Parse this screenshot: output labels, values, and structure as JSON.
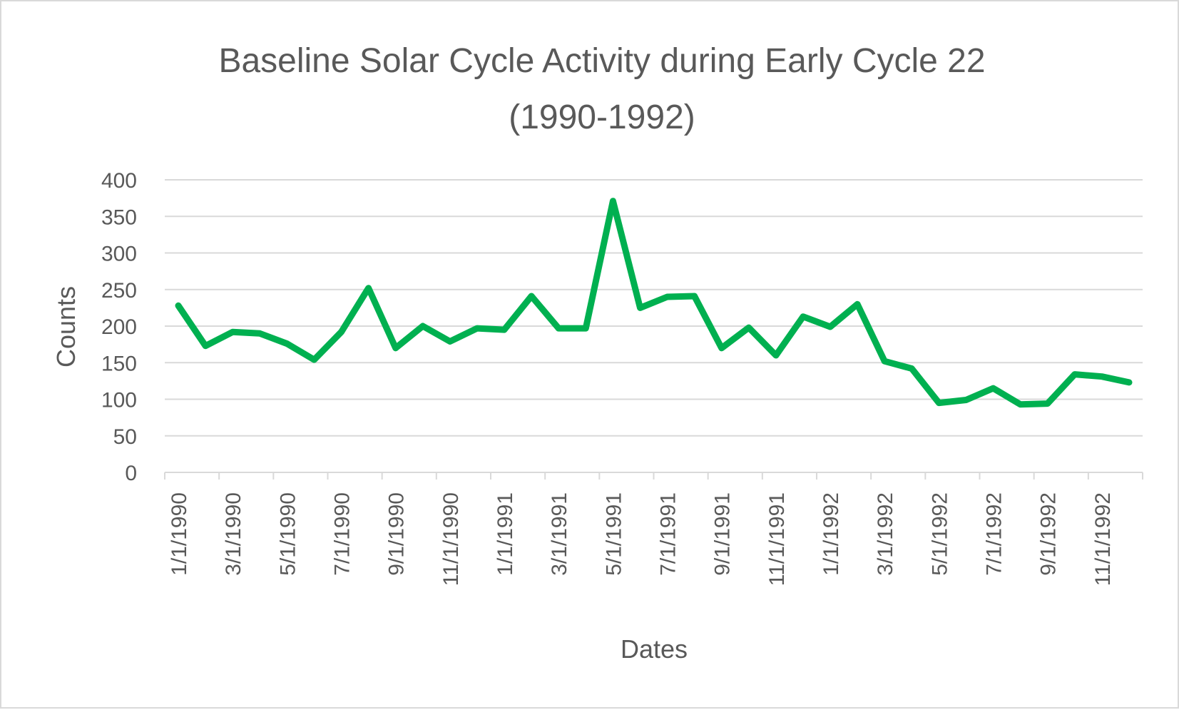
{
  "chart_data": {
    "type": "line",
    "title_lines": [
      "Baseline Solar Cycle Activity during Early Cycle 22",
      "(1990-1992)"
    ],
    "xlabel": "Dates",
    "ylabel": "Counts",
    "ylim": [
      0,
      400
    ],
    "y_ticks": [
      0,
      50,
      100,
      150,
      200,
      250,
      300,
      350,
      400
    ],
    "gridlines": true,
    "legend": "none",
    "line_color": "#00b050",
    "x_tick_labels": [
      "1/1/1990",
      "3/1/1990",
      "5/1/1990",
      "7/1/1990",
      "9/1/1990",
      "11/1/1990",
      "1/1/1991",
      "3/1/1991",
      "5/1/1991",
      "7/1/1991",
      "9/1/1991",
      "11/1/1991",
      "1/1/1992",
      "3/1/1992",
      "5/1/1992",
      "7/1/1992",
      "9/1/1992",
      "11/1/1992"
    ],
    "categories": [
      "1/1990",
      "2/1990",
      "3/1990",
      "4/1990",
      "5/1990",
      "6/1990",
      "7/1990",
      "8/1990",
      "9/1990",
      "10/1990",
      "11/1990",
      "12/1990",
      "1/1991",
      "2/1991",
      "3/1991",
      "4/1991",
      "5/1991",
      "6/1991",
      "7/1991",
      "8/1991",
      "9/1991",
      "10/1991",
      "11/1991",
      "12/1991",
      "1/1992",
      "2/1992",
      "3/1992",
      "4/1992",
      "5/1992",
      "6/1992",
      "7/1992",
      "8/1992",
      "9/1992",
      "10/1992",
      "11/1992",
      "12/1992"
    ],
    "series": [
      {
        "name": "Counts",
        "values": [
          228,
          173,
          192,
          190,
          176,
          154,
          192,
          252,
          170,
          200,
          179,
          197,
          195,
          241,
          197,
          197,
          371,
          225,
          240,
          241,
          170,
          198,
          160,
          213,
          199,
          230,
          152,
          142,
          95,
          99,
          115,
          93,
          94,
          134,
          131,
          123
        ]
      }
    ]
  }
}
